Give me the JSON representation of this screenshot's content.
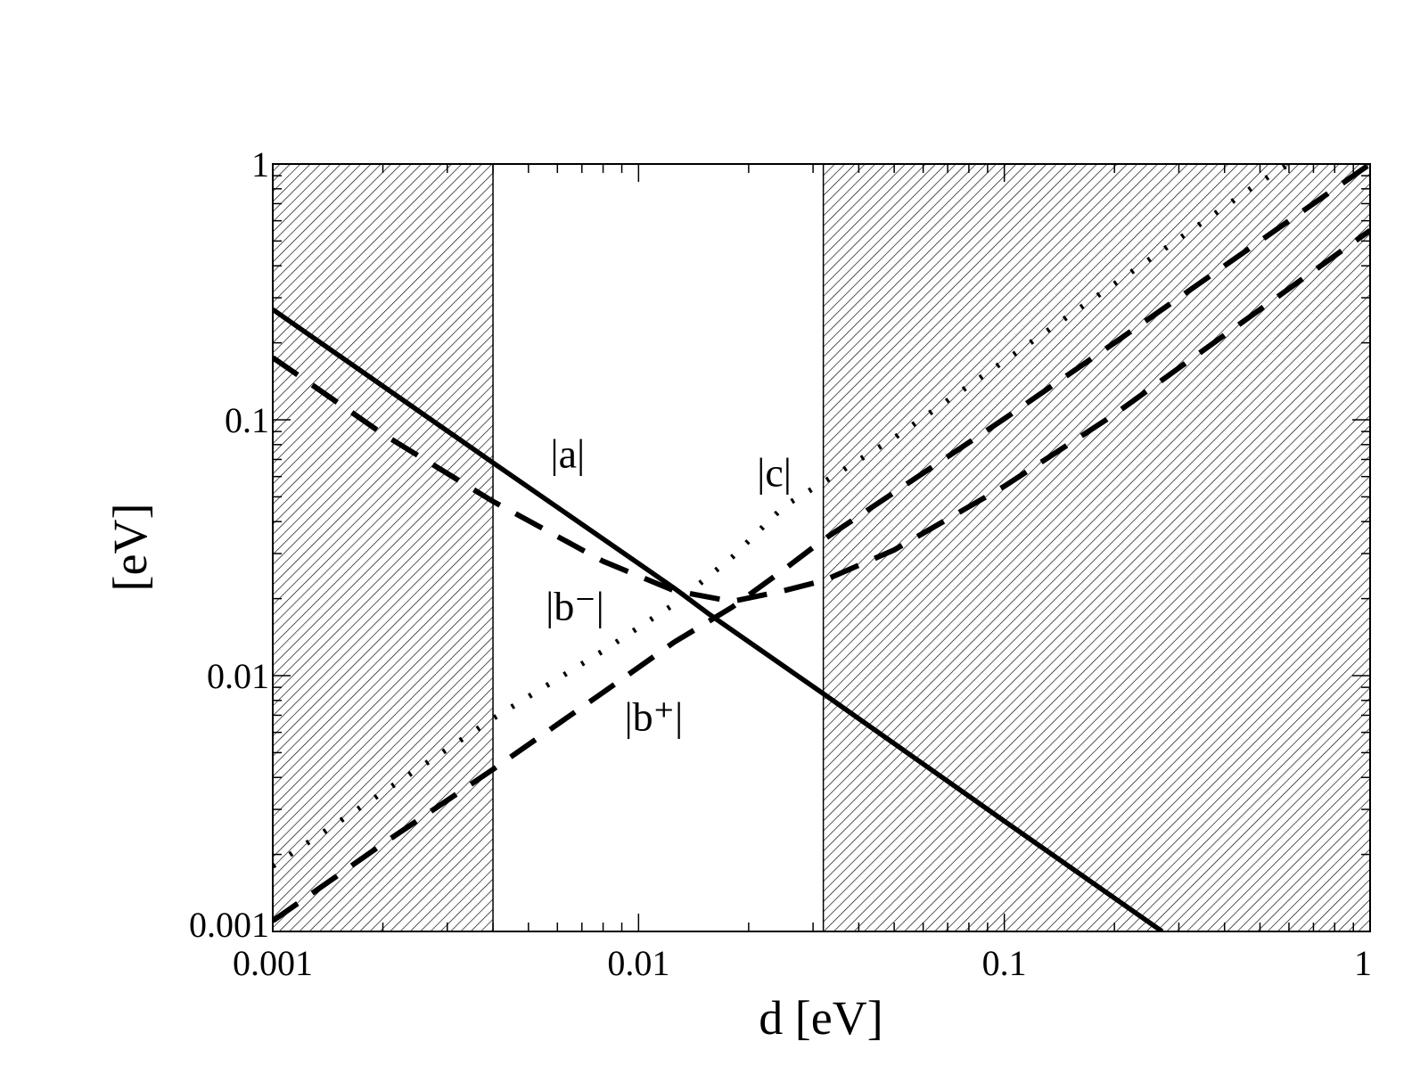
{
  "chart_data": {
    "type": "line",
    "xlabel": "d [eV]",
    "ylabel": "[eV]",
    "xscale": "log",
    "yscale": "log",
    "xlim": [
      0.001,
      1
    ],
    "ylim": [
      0.001,
      1
    ],
    "x_ticks": [
      "0.001",
      "0.01",
      "0.1",
      "1"
    ],
    "y_ticks": [
      "0.001",
      "0.01",
      "0.1",
      "1"
    ],
    "grid": false,
    "legend": "none",
    "shaded_regions": [
      {
        "x": [
          0.001,
          0.004
        ],
        "pattern": "diagonal-hatch"
      },
      {
        "x": [
          0.032,
          1
        ],
        "pattern": "diagonal-hatch"
      }
    ],
    "series": [
      {
        "name": "|a|",
        "style": "solid",
        "dash": "",
        "x": [
          0.001,
          0.004,
          0.0125,
          0.0155,
          0.032,
          0.1,
          0.27
        ],
        "y": [
          0.27,
          0.068,
          0.022,
          0.0175,
          0.0085,
          0.0027,
          0.001
        ]
      },
      {
        "name": "|b⁻|",
        "style": "dashed",
        "dash": "34,20",
        "x": [
          0.001,
          0.002,
          0.004,
          0.008,
          0.0125,
          0.018,
          0.025,
          0.032,
          0.05,
          0.1,
          0.2,
          0.5,
          1
        ],
        "y": [
          0.175,
          0.088,
          0.048,
          0.028,
          0.0215,
          0.0195,
          0.0215,
          0.0235,
          0.031,
          0.055,
          0.105,
          0.27,
          0.55
        ]
      },
      {
        "name": "|b⁺|",
        "style": "dashed",
        "dash": "34,20",
        "x": [
          0.001,
          0.002,
          0.004,
          0.008,
          0.0125,
          0.018,
          0.025,
          0.032,
          0.05,
          0.1,
          0.2,
          0.5,
          1
        ],
        "y": [
          0.0011,
          0.0022,
          0.0043,
          0.0086,
          0.0135,
          0.0185,
          0.026,
          0.034,
          0.052,
          0.101,
          0.2,
          0.5,
          1
        ]
      },
      {
        "name": "|c|",
        "style": "dotted",
        "dash": "3,20",
        "x": [
          0.001,
          0.002,
          0.004,
          0.008,
          0.0125,
          0.018,
          0.025,
          0.032,
          0.05,
          0.1,
          0.2,
          0.5,
          0.6
        ],
        "y": [
          0.0018,
          0.0035,
          0.0068,
          0.0125,
          0.019,
          0.029,
          0.046,
          0.057,
          0.085,
          0.17,
          0.34,
          0.85,
          1
        ]
      }
    ],
    "annotations": [
      {
        "text": "|a|",
        "x": 0.0064,
        "y": 0.065
      },
      {
        "text": "|c|",
        "x": 0.0235,
        "y": 0.055
      },
      {
        "text": "|b⁻|",
        "x": 0.0067,
        "y": 0.0165
      },
      {
        "text": "|b⁺|",
        "x": 0.011,
        "y": 0.0061
      }
    ]
  }
}
